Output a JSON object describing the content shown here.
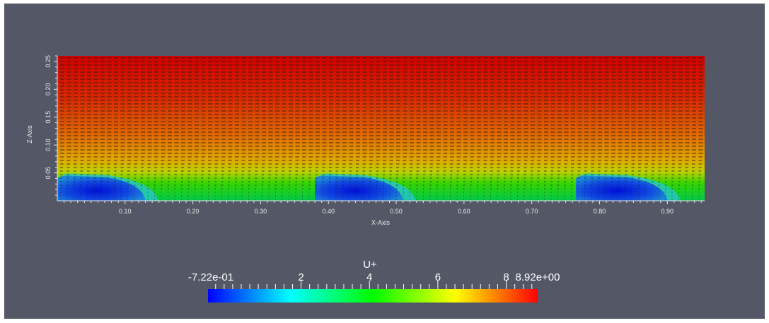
{
  "chart_data": {
    "type": "heatmap",
    "title": "",
    "scalar_name": "U+",
    "xlabel": "X-Axis",
    "ylabel": "Z-Axis",
    "xlim": [
      0.0,
      0.955
    ],
    "ylim": [
      0.0,
      0.26
    ],
    "x_ticks": [
      0.1,
      0.2,
      0.3,
      0.4,
      0.5,
      0.6,
      0.7,
      0.8,
      0.9
    ],
    "x_tick_labels": [
      "0.10",
      "0.20",
      "0.30",
      "0.40",
      "0.50",
      "0.60",
      "0.70",
      "0.80",
      "0.90"
    ],
    "y_ticks": [
      0.05,
      0.1,
      0.15,
      0.2,
      0.25
    ],
    "y_tick_labels": [
      "0.05",
      "0.10",
      "0.15",
      "0.20",
      "0.25"
    ],
    "grid": false,
    "vectors": "flow arrows pointing in +x direction",
    "recirculation_regions": [
      {
        "x_start": 0.0,
        "x_end": 0.13,
        "z_top": 0.045
      },
      {
        "x_start": 0.38,
        "x_end": 0.51,
        "z_top": 0.045
      },
      {
        "x_start": 0.765,
        "x_end": 0.9,
        "z_top": 0.045
      }
    ],
    "colorbar": {
      "title": "U+",
      "range": [
        -0.722,
        8.92
      ],
      "min_label": "-7.22e-01",
      "max_label": "8.92e+00",
      "tick_values": [
        2,
        4,
        6,
        8
      ],
      "tick_labels": [
        "2",
        "4",
        "6",
        "8"
      ],
      "colormap": [
        "#0000ff",
        "#00ffff",
        "#00ff00",
        "#ffff00",
        "#ff0000"
      ]
    }
  },
  "colors": {
    "background": "#545866",
    "text": "#e8e8e8"
  }
}
